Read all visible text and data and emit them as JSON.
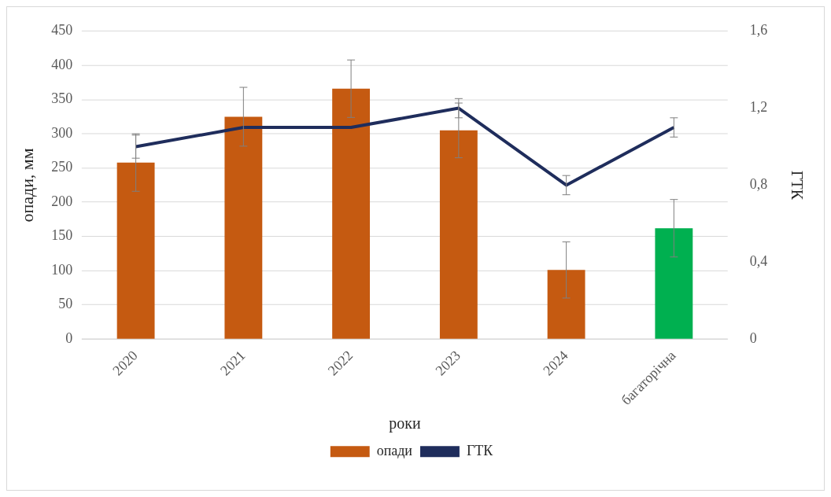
{
  "chart_data": {
    "type": "bar",
    "categories": [
      "2020",
      "2021",
      "2022",
      "2023",
      "2024",
      "багаторічна"
    ],
    "xlabel": "роки",
    "ylabel": "опади, мм",
    "y2label": "ГТК",
    "series": [
      {
        "name": "опади",
        "color": "#c55a11",
        "colors": [
          "#c55a11",
          "#c55a11",
          "#c55a11",
          "#c55a11",
          "#c55a11",
          "#00b050"
        ],
        "values": [
          258,
          325,
          366,
          305,
          101,
          162
        ],
        "errors": [
          42,
          43,
          42,
          40,
          41,
          42
        ]
      },
      {
        "name": "ГТК",
        "type": "line",
        "axis": "y2",
        "color": "#1f2d5c",
        "values": [
          1.0,
          1.1,
          1.1,
          1.2,
          0.8,
          1.1
        ],
        "errors": [
          0.06,
          null,
          null,
          0.05,
          0.05,
          0.05
        ]
      }
    ],
    "ylim": [
      0,
      450
    ],
    "yticks": [
      0,
      50,
      100,
      150,
      200,
      250,
      300,
      350,
      400,
      450
    ],
    "y2lim": [
      0,
      1.6
    ],
    "y2ticks": [
      0,
      {
        "value": 0.4,
        "label": "0,4"
      },
      {
        "value": 0.8,
        "label": "0,8"
      },
      {
        "value": 1.2,
        "label": "1,2"
      },
      {
        "value": 1.6,
        "label": "1,6"
      }
    ],
    "grid": "y",
    "legend": "bottom",
    "marker": "none",
    "line_style": "solid"
  }
}
